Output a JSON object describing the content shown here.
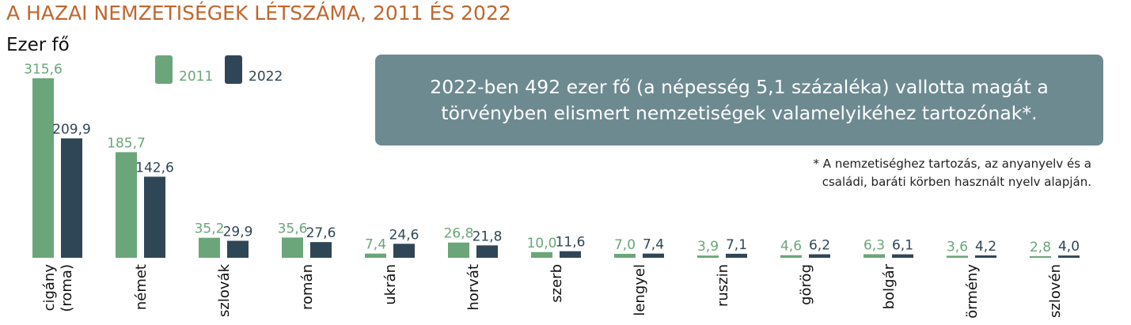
{
  "title": "A HAZAI NEMZETISÉGEK LÉTSZÁMA, 2011 ÉS 2022",
  "colors": {
    "s2011": "#6aa67a",
    "s2022": "#2f4656",
    "title": "#c0662e",
    "box": "#6e8a91"
  },
  "note": "2022-ben 492 ezer fő (a népesség 5,1 százaléka) vallotta magát a törvényben elismert nemzetiségek valamelyikéhez tartozónak*.",
  "footnote_line1": "* A nemzetiséghez tartozás, az anyanyelv és a",
  "footnote_line2": "családi, baráti körben használt nyelv alapján.",
  "chart_data": {
    "type": "bar",
    "title": "A HAZAI NEMZETISÉGEK LÉTSZÁMA, 2011 ÉS 2022",
    "ylabel": "Ezer fő",
    "xlabel": "",
    "ylim": [
      0,
      315.6
    ],
    "grid": false,
    "legend": "top-left",
    "categories": [
      [
        "cigány",
        "(roma)"
      ],
      [
        "német"
      ],
      [
        "szlovák"
      ],
      [
        "román"
      ],
      [
        "ukrán"
      ],
      [
        "horvát"
      ],
      [
        "szerb"
      ],
      [
        "lengyel"
      ],
      [
        "ruszin"
      ],
      [
        "görög"
      ],
      [
        "bolgár"
      ],
      [
        "örmény"
      ],
      [
        "szlovén"
      ]
    ],
    "series": [
      {
        "name": "2011",
        "values": [
          315.6,
          185.7,
          35.2,
          35.6,
          7.4,
          26.8,
          10.0,
          7.0,
          3.9,
          4.6,
          6.3,
          3.6,
          2.8
        ],
        "labels": [
          "315,6",
          "185,7",
          "35,2",
          "35,6",
          "7,4",
          "26,8",
          "10,0",
          "7,0",
          "3,9",
          "4,6",
          "6,3",
          "3,6",
          "2,8"
        ]
      },
      {
        "name": "2022",
        "values": [
          209.9,
          142.6,
          29.9,
          27.6,
          24.6,
          21.8,
          11.6,
          7.4,
          7.1,
          6.2,
          6.1,
          4.2,
          4.0
        ],
        "labels": [
          "209,9",
          "142,6",
          "29,9",
          "27,6",
          "24,6",
          "21,8",
          "11,6",
          "7,4",
          "7,1",
          "6,2",
          "6,1",
          "4,2",
          "4,0"
        ]
      }
    ]
  }
}
